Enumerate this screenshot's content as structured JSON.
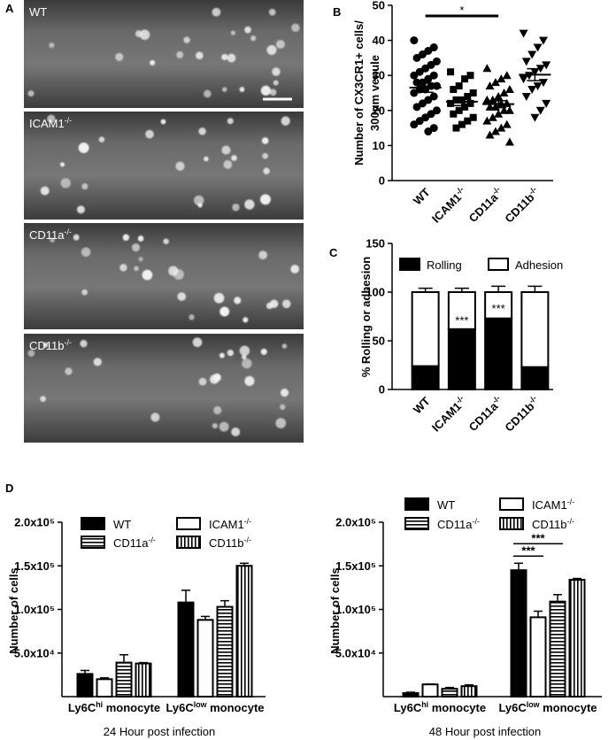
{
  "panel_labels": [
    "A",
    "B",
    "C",
    "D"
  ],
  "micrographs": [
    {
      "label": [
        "WT"
      ]
    },
    {
      "label": [
        "ICAM1",
        "-/-"
      ]
    },
    {
      "label": [
        "CD11a",
        "-/-"
      ]
    },
    {
      "label": [
        "CD11b",
        "-/-"
      ]
    }
  ],
  "chart_data": [
    {
      "type": "dot",
      "ylabel": [
        "Number of CX3CR1+ cells/",
        "300μm venule"
      ],
      "categories": [
        [
          "WT"
        ],
        [
          "ICAM1",
          "-/-"
        ],
        [
          "CD11a",
          "-/-"
        ],
        [
          "CD11b",
          "-/-"
        ]
      ],
      "groups": [
        {
          "marker": "circle",
          "mean": 26.5,
          "sem": 1.3,
          "values": [
            40,
            38,
            37,
            36,
            35,
            34,
            33,
            32,
            31,
            30,
            30,
            29,
            28,
            28,
            27,
            27,
            26,
            26,
            25,
            24,
            23,
            22,
            21,
            20,
            19,
            18,
            17,
            16,
            15,
            14
          ]
        },
        {
          "marker": "square",
          "mean": 22.5,
          "sem": 1.1,
          "values": [
            31,
            30,
            29,
            27,
            26,
            25,
            24,
            23,
            23,
            22,
            22,
            21,
            20,
            19,
            18,
            17,
            16,
            15
          ]
        },
        {
          "marker": "triangle-up",
          "mean": 21.8,
          "sem": 1.0,
          "values": [
            32,
            30,
            29,
            28,
            27,
            26,
            25,
            24,
            23,
            23,
            22,
            22,
            21,
            21,
            20,
            20,
            19,
            18,
            17,
            16,
            15,
            14,
            13,
            11
          ]
        },
        {
          "marker": "triangle-down",
          "mean": 30.2,
          "sem": 1.7,
          "values": [
            42,
            40,
            38,
            36,
            34,
            33,
            32,
            31,
            30,
            29,
            28,
            27,
            26,
            24,
            22,
            20,
            18
          ]
        }
      ],
      "annotations": [
        {
          "text": "*",
          "between": [
            0,
            2
          ]
        }
      ],
      "ylim": [
        0,
        50
      ],
      "yticks": [
        0,
        10,
        20,
        30,
        40,
        50
      ]
    },
    {
      "type": "stacked_bar",
      "ylabel": [
        "% Rolling or adhesion"
      ],
      "categories": [
        [
          "WT"
        ],
        [
          "ICAM1",
          "-/-"
        ],
        [
          "CD11a",
          "-/-"
        ],
        [
          "CD11b",
          "-/-"
        ]
      ],
      "series": [
        {
          "name": [
            "Rolling"
          ],
          "color": "#000000",
          "values": [
            24,
            62,
            73,
            23
          ],
          "errors": [
            4,
            4,
            5,
            5
          ]
        },
        {
          "name": [
            "Adhesion"
          ],
          "color": "#ffffff",
          "values": [
            76,
            38,
            27,
            77
          ],
          "errors": [
            4,
            4,
            6,
            6
          ]
        }
      ],
      "annotations": [
        {
          "text": "***",
          "at": 1
        },
        {
          "text": "***",
          "at": 2
        }
      ],
      "ylim": [
        0,
        150
      ],
      "yticks": [
        0,
        50,
        100,
        150
      ]
    },
    {
      "type": "bar",
      "ylabel": [
        "Number of cells"
      ],
      "xlabel": "24 Hour post infection",
      "categories": [
        [
          "Ly6C",
          "hi",
          " monocyte"
        ],
        [
          "Ly6C",
          "low",
          " monocyte"
        ]
      ],
      "series": [
        {
          "name": [
            "WT"
          ],
          "fill": "solid",
          "values": [
            26000,
            108000
          ],
          "errors": [
            4000,
            14000
          ]
        },
        {
          "name": [
            "ICAM1",
            "-/-"
          ],
          "fill": "white",
          "values": [
            20000,
            88000
          ],
          "errors": [
            1500,
            4000
          ]
        },
        {
          "name": [
            "CD11a",
            "-/-"
          ],
          "fill": "horizontal-stripes",
          "values": [
            39000,
            103000
          ],
          "errors": [
            9000,
            7000
          ]
        },
        {
          "name": [
            "CD11b",
            "-/-"
          ],
          "fill": "vertical-stripes",
          "values": [
            38000,
            150000
          ],
          "errors": [
            1000,
            3000
          ]
        }
      ],
      "annotations": [],
      "ylim": [
        0,
        200000
      ],
      "yticks": [
        {
          "value": 50000,
          "label": "5.0x10⁴"
        },
        {
          "value": 100000,
          "label": "1.0x10⁵"
        },
        {
          "value": 150000,
          "label": "1.5x10⁵"
        },
        {
          "value": 200000,
          "label": "2.0x10⁵"
        }
      ]
    },
    {
      "type": "bar",
      "ylabel": [
        "Number of cells"
      ],
      "xlabel": "48 Hour post infection",
      "categories": [
        [
          "Ly6C",
          "hi",
          " monocyte"
        ],
        [
          "Ly6C",
          "low",
          " monocyte"
        ]
      ],
      "series": [
        {
          "name": [
            "WT"
          ],
          "fill": "solid",
          "values": [
            4000,
            145000
          ],
          "errors": [
            1000,
            8000
          ]
        },
        {
          "name": [
            "ICAM1",
            "-/-"
          ],
          "fill": "white",
          "values": [
            14000,
            91000
          ],
          "errors": [
            500,
            7000
          ]
        },
        {
          "name": [
            "CD11a",
            "-/-"
          ],
          "fill": "horizontal-stripes",
          "values": [
            9000,
            109000
          ],
          "errors": [
            1500,
            8000
          ]
        },
        {
          "name": [
            "CD11b",
            "-/-"
          ],
          "fill": "vertical-stripes",
          "values": [
            12000,
            134000
          ],
          "errors": [
            1500,
            1500
          ]
        }
      ],
      "annotations": [
        {
          "text": "***",
          "between": [
            0,
            1
          ],
          "group": 1
        },
        {
          "text": "***",
          "between": [
            0,
            2
          ],
          "group": 1
        }
      ],
      "ylim": [
        0,
        200000
      ],
      "yticks": [
        {
          "value": 50000,
          "label": "5.0x10⁴"
        },
        {
          "value": 100000,
          "label": "1.0x10⁵"
        },
        {
          "value": 150000,
          "label": "1.5x10⁵"
        },
        {
          "value": 200000,
          "label": "2.0x10⁵"
        }
      ]
    }
  ]
}
